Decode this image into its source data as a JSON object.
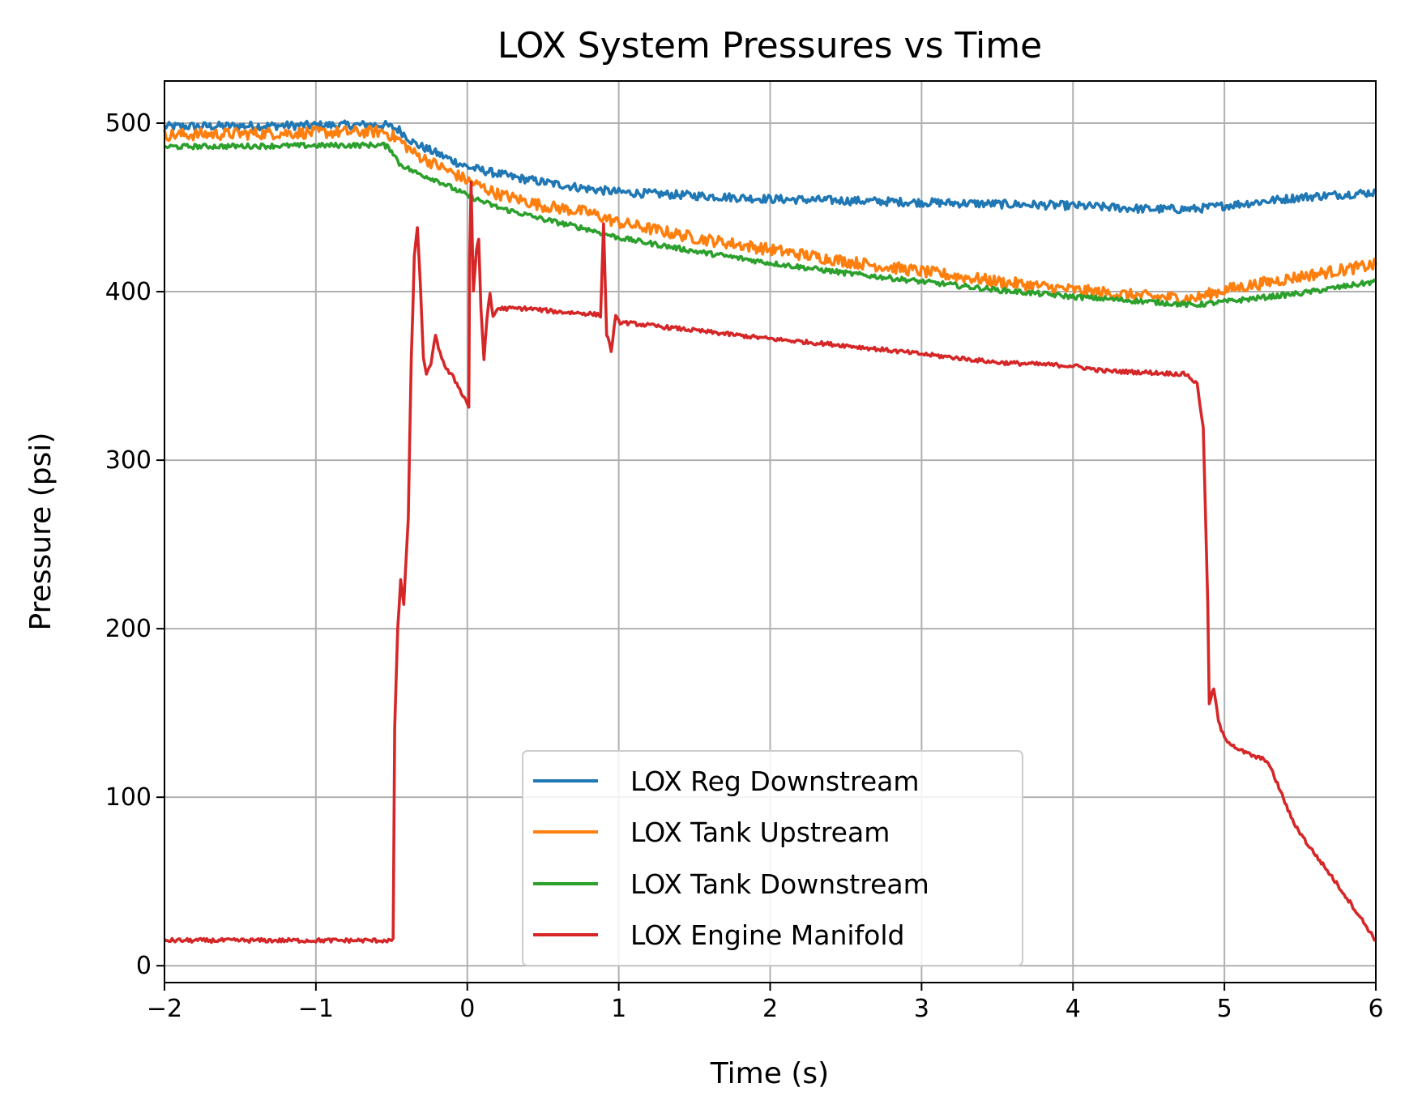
{
  "chart_data": {
    "type": "line",
    "title": "LOX System Pressures vs Time",
    "xlabel": "Time (s)",
    "ylabel": "Pressure (psi)",
    "xlim": [
      -2,
      6
    ],
    "ylim": [
      -10,
      525
    ],
    "xticks": [
      -2,
      -1,
      0,
      1,
      2,
      3,
      4,
      5,
      6
    ],
    "xtick_labels": [
      "−2",
      "−1",
      "0",
      "1",
      "2",
      "3",
      "4",
      "5",
      "6"
    ],
    "yticks": [
      0,
      100,
      200,
      300,
      400,
      500
    ],
    "ytick_labels": [
      "0",
      "100",
      "200",
      "300",
      "400",
      "500"
    ],
    "grid": true,
    "legend_position": "lower-center",
    "series": [
      {
        "name": "LOX Reg Downstream",
        "color": "#1f77b4",
        "noise": 2.5,
        "points": [
          [
            -2,
            498
          ],
          [
            -0.55,
            499
          ],
          [
            -0.45,
            496
          ],
          [
            -0.35,
            488
          ],
          [
            -0.2,
            482
          ],
          [
            0,
            474
          ],
          [
            0.3,
            468
          ],
          [
            0.5,
            465
          ],
          [
            0.8,
            461
          ],
          [
            1,
            459
          ],
          [
            1.5,
            457
          ],
          [
            2,
            455
          ],
          [
            2.5,
            454
          ],
          [
            3,
            453
          ],
          [
            3.5,
            452
          ],
          [
            4,
            451
          ],
          [
            4.5,
            449
          ],
          [
            4.8,
            449
          ],
          [
            5,
            451
          ],
          [
            5.5,
            456
          ],
          [
            6,
            459
          ]
        ]
      },
      {
        "name": "LOX Tank Upstream",
        "color": "#ff7f0e",
        "noise": 3.5,
        "points": [
          [
            -2,
            493
          ],
          [
            -0.55,
            495
          ],
          [
            -0.45,
            490
          ],
          [
            -0.35,
            482
          ],
          [
            -0.2,
            475
          ],
          [
            0,
            466
          ],
          [
            0.2,
            458
          ],
          [
            0.5,
            451
          ],
          [
            0.8,
            447
          ],
          [
            1,
            441
          ],
          [
            1.5,
            432
          ],
          [
            2,
            425
          ],
          [
            2.5,
            418
          ],
          [
            3,
            412
          ],
          [
            3.5,
            406
          ],
          [
            4,
            401
          ],
          [
            4.5,
            397
          ],
          [
            4.8,
            396
          ],
          [
            5,
            401
          ],
          [
            5.5,
            409
          ],
          [
            6,
            416
          ]
        ]
      },
      {
        "name": "LOX Tank Downstream",
        "color": "#2ca02c",
        "noise": 1.5,
        "points": [
          [
            -2,
            486
          ],
          [
            -0.55,
            487
          ],
          [
            -0.5,
            484
          ],
          [
            -0.45,
            476
          ],
          [
            -0.35,
            471
          ],
          [
            -0.2,
            466
          ],
          [
            0,
            457
          ],
          [
            0.2,
            450
          ],
          [
            0.5,
            443
          ],
          [
            0.8,
            437
          ],
          [
            1,
            432
          ],
          [
            1.5,
            424
          ],
          [
            2,
            417
          ],
          [
            2.5,
            411
          ],
          [
            3,
            406
          ],
          [
            3.5,
            401
          ],
          [
            4,
            397
          ],
          [
            4.5,
            394
          ],
          [
            4.8,
            392
          ],
          [
            5,
            394
          ],
          [
            5.5,
            399
          ],
          [
            6,
            406
          ]
        ]
      },
      {
        "name": "LOX Engine Manifold",
        "color": "#d62728",
        "noise": 1.2,
        "points": [
          [
            -2,
            15
          ],
          [
            -0.5,
            15
          ],
          [
            -0.49,
            15
          ],
          [
            -0.48,
            140
          ],
          [
            -0.46,
            200
          ],
          [
            -0.44,
            228
          ],
          [
            -0.42,
            215
          ],
          [
            -0.39,
            265
          ],
          [
            -0.37,
            360
          ],
          [
            -0.35,
            420
          ],
          [
            -0.33,
            438
          ],
          [
            -0.31,
            405
          ],
          [
            -0.29,
            360
          ],
          [
            -0.27,
            350
          ],
          [
            -0.24,
            358
          ],
          [
            -0.21,
            373
          ],
          [
            -0.18,
            364
          ],
          [
            -0.14,
            354
          ],
          [
            -0.1,
            350
          ],
          [
            -0.06,
            344
          ],
          [
            -0.02,
            337
          ],
          [
            0.01,
            332
          ],
          [
            0.015,
            420
          ],
          [
            0.025,
            465
          ],
          [
            0.04,
            400
          ],
          [
            0.06,
            425
          ],
          [
            0.075,
            430
          ],
          [
            0.09,
            390
          ],
          [
            0.11,
            360
          ],
          [
            0.13,
            385
          ],
          [
            0.15,
            398
          ],
          [
            0.17,
            385
          ],
          [
            0.2,
            390
          ],
          [
            0.4,
            390
          ],
          [
            0.6,
            388
          ],
          [
            0.8,
            387
          ],
          [
            0.88,
            386
          ],
          [
            0.9,
            440
          ],
          [
            0.92,
            375
          ],
          [
            0.95,
            365
          ],
          [
            0.98,
            385
          ],
          [
            1,
            382
          ],
          [
            1.5,
            377
          ],
          [
            2,
            372
          ],
          [
            2.5,
            368
          ],
          [
            3,
            363
          ],
          [
            3.5,
            358
          ],
          [
            4,
            356
          ],
          [
            4.2,
            353
          ],
          [
            4.5,
            352
          ],
          [
            4.75,
            351
          ],
          [
            4.82,
            345
          ],
          [
            4.86,
            320
          ],
          [
            4.88,
            250
          ],
          [
            4.89,
            215
          ],
          [
            4.9,
            155
          ],
          [
            4.93,
            165
          ],
          [
            4.96,
            145
          ],
          [
            5,
            135
          ],
          [
            5.1,
            128
          ],
          [
            5.2,
            124
          ],
          [
            5.28,
            122
          ],
          [
            5.35,
            108
          ],
          [
            5.45,
            86
          ],
          [
            5.55,
            72
          ],
          [
            5.7,
            54
          ],
          [
            5.85,
            35
          ],
          [
            6,
            15
          ]
        ]
      }
    ]
  }
}
